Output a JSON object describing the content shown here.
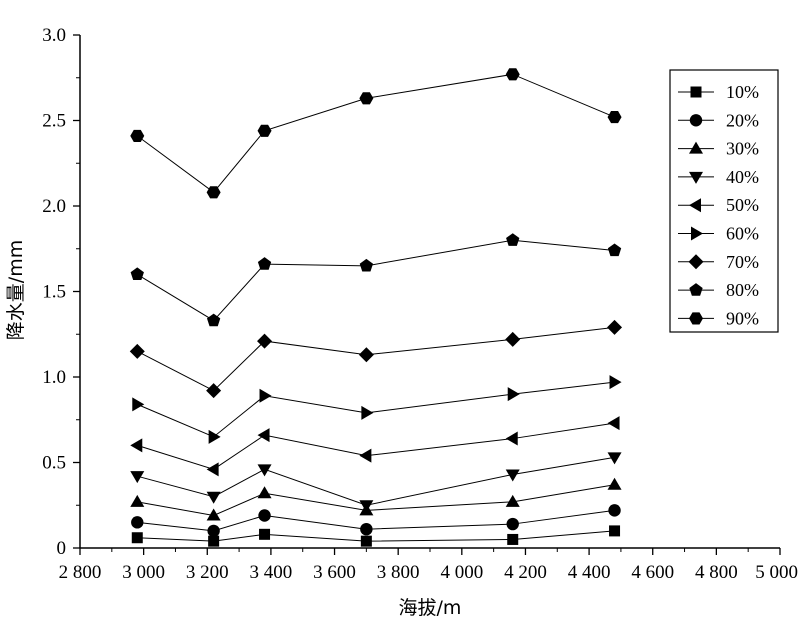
{
  "chart_data": {
    "type": "line",
    "xlabel": "海拔/m",
    "ylabel": "降水量/mm",
    "xlim": [
      2800,
      5000
    ],
    "ylim": [
      0,
      3.0
    ],
    "xticks": [
      {
        "v": 2800,
        "label": "2 800"
      },
      {
        "v": 3000,
        "label": "3 000"
      },
      {
        "v": 3200,
        "label": "3 200"
      },
      {
        "v": 3400,
        "label": "3 400"
      },
      {
        "v": 3600,
        "label": "3 600"
      },
      {
        "v": 3800,
        "label": "3 800"
      },
      {
        "v": 4000,
        "label": "4 000"
      },
      {
        "v": 4200,
        "label": "4 200"
      },
      {
        "v": 4400,
        "label": "4 400"
      },
      {
        "v": 4600,
        "label": "4 600"
      },
      {
        "v": 4800,
        "label": "4 800"
      },
      {
        "v": 5000,
        "label": "5 000"
      }
    ],
    "yticks": [
      {
        "v": 0,
        "label": "0"
      },
      {
        "v": 0.5,
        "label": "0.5"
      },
      {
        "v": 1.0,
        "label": "1.0"
      },
      {
        "v": 1.5,
        "label": "1.5"
      },
      {
        "v": 2.0,
        "label": "2.0"
      },
      {
        "v": 2.5,
        "label": "2.5"
      },
      {
        "v": 3.0,
        "label": "3.0"
      }
    ],
    "grid": false,
    "legend_position": "top-right",
    "x": [
      2980,
      3220,
      3380,
      3700,
      4160,
      4480
    ],
    "series": [
      {
        "name": "10%",
        "marker": "square",
        "values": [
          0.06,
          0.04,
          0.08,
          0.04,
          0.05,
          0.1
        ]
      },
      {
        "name": "20%",
        "marker": "circle",
        "values": [
          0.15,
          0.1,
          0.19,
          0.11,
          0.14,
          0.22
        ]
      },
      {
        "name": "30%",
        "marker": "triangle-up",
        "values": [
          0.27,
          0.19,
          0.32,
          0.22,
          0.27,
          0.37
        ]
      },
      {
        "name": "40%",
        "marker": "triangle-down",
        "values": [
          0.42,
          0.3,
          0.46,
          0.25,
          0.43,
          0.53
        ]
      },
      {
        "name": "50%",
        "marker": "triangle-left",
        "values": [
          0.6,
          0.46,
          0.66,
          0.54,
          0.64,
          0.73
        ]
      },
      {
        "name": "60%",
        "marker": "triangle-right",
        "values": [
          0.84,
          0.65,
          0.89,
          0.79,
          0.9,
          0.97
        ]
      },
      {
        "name": "70%",
        "marker": "diamond",
        "values": [
          1.15,
          0.92,
          1.21,
          1.13,
          1.22,
          1.29
        ]
      },
      {
        "name": "80%",
        "marker": "pentagon",
        "values": [
          1.6,
          1.33,
          1.66,
          1.65,
          1.8,
          1.74
        ]
      },
      {
        "name": "90%",
        "marker": "hexagon",
        "values": [
          2.41,
          2.08,
          2.44,
          2.63,
          2.77,
          2.52
        ]
      }
    ]
  }
}
